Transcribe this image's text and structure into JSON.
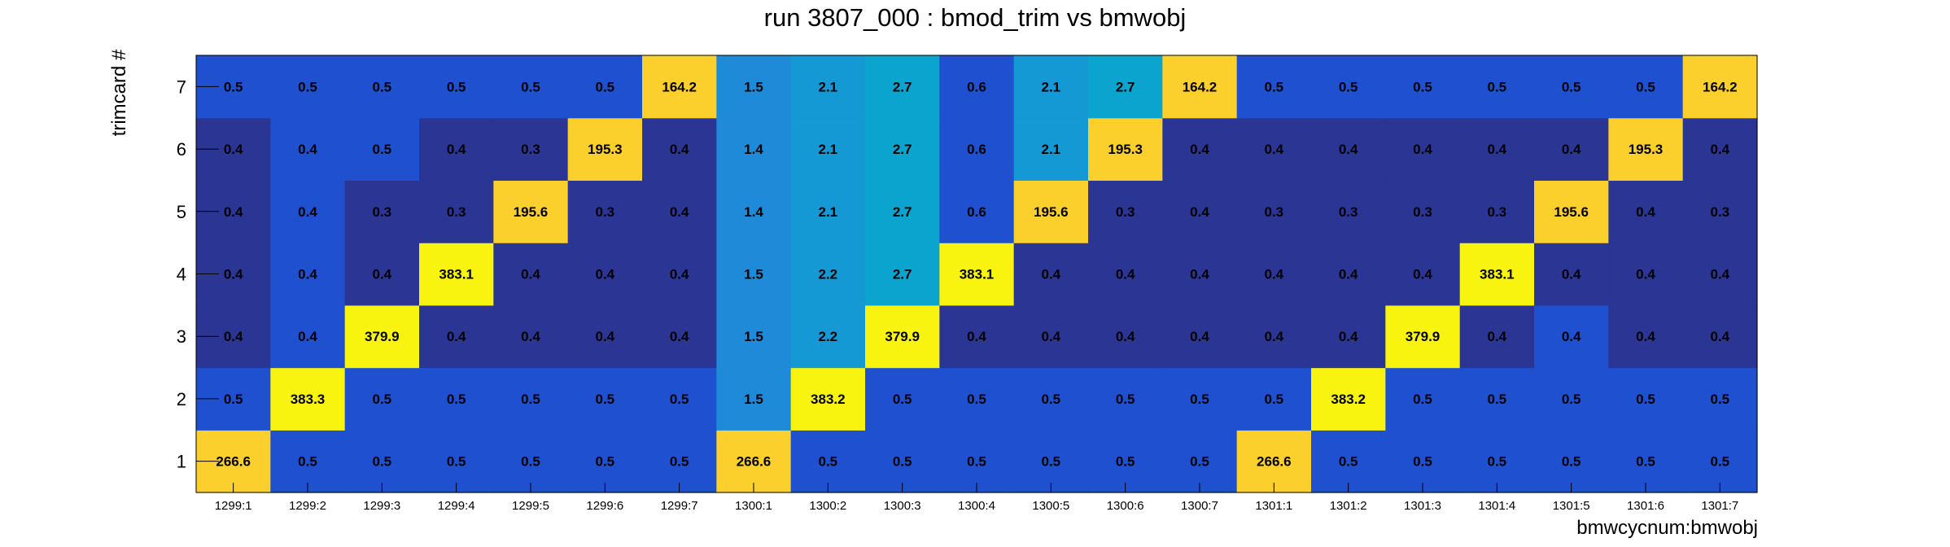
{
  "chart_data": {
    "type": "heatmap",
    "title": "run 3807_000 : bmod_trim vs bmwobj",
    "xlabel": "bmwcycnum:bmwobj",
    "ylabel": "trimcard #",
    "x_categories": [
      "1299:1",
      "1299:2",
      "1299:3",
      "1299:4",
      "1299:5",
      "1299:6",
      "1299:7",
      "1300:1",
      "1300:2",
      "1300:3",
      "1300:4",
      "1300:5",
      "1300:6",
      "1300:7",
      "1301:1",
      "1301:2",
      "1301:3",
      "1301:4",
      "1301:5",
      "1301:6",
      "1301:7"
    ],
    "y_categories": [
      "1",
      "2",
      "3",
      "4",
      "5",
      "6",
      "7"
    ],
    "values": [
      [
        "266.6",
        "0.5",
        "0.5",
        "0.5",
        "0.5",
        "0.5",
        "0.5",
        "266.6",
        "0.5",
        "0.5",
        "0.5",
        "0.5",
        "0.5",
        "0.5",
        "266.6",
        "0.5",
        "0.5",
        "0.5",
        "0.5",
        "0.5",
        "0.5"
      ],
      [
        "0.5",
        "383.3",
        "0.5",
        "0.5",
        "0.5",
        "0.5",
        "0.5",
        "1.5",
        "383.2",
        "0.5",
        "0.5",
        "0.5",
        "0.5",
        "0.5",
        "0.5",
        "383.2",
        "0.5",
        "0.5",
        "0.5",
        "0.5",
        "0.5"
      ],
      [
        "0.4",
        "0.4",
        "379.9",
        "0.4",
        "0.4",
        "0.4",
        "0.4",
        "1.5",
        "2.2",
        "379.9",
        "0.4",
        "0.4",
        "0.4",
        "0.4",
        "0.4",
        "0.4",
        "379.9",
        "0.4",
        "0.4",
        "0.4",
        "0.4"
      ],
      [
        "0.4",
        "0.4",
        "0.4",
        "383.1",
        "0.4",
        "0.4",
        "0.4",
        "1.5",
        "2.2",
        "2.7",
        "383.1",
        "0.4",
        "0.4",
        "0.4",
        "0.4",
        "0.4",
        "0.4",
        "383.1",
        "0.4",
        "0.4",
        "0.4"
      ],
      [
        "0.4",
        "0.4",
        "0.3",
        "0.3",
        "195.6",
        "0.3",
        "0.4",
        "1.4",
        "2.1",
        "2.7",
        "0.6",
        "195.6",
        "0.3",
        "0.4",
        "0.3",
        "0.3",
        "0.3",
        "0.3",
        "195.6",
        "0.4",
        "0.3"
      ],
      [
        "0.4",
        "0.4",
        "0.5",
        "0.4",
        "0.3",
        "195.3",
        "0.4",
        "1.4",
        "2.1",
        "2.7",
        "0.6",
        "2.1",
        "195.3",
        "0.4",
        "0.4",
        "0.4",
        "0.4",
        "0.4",
        "0.4",
        "195.3",
        "0.4"
      ],
      [
        "0.5",
        "0.5",
        "0.5",
        "0.5",
        "0.5",
        "0.5",
        "164.2",
        "1.5",
        "2.1",
        "2.7",
        "0.6",
        "2.1",
        "2.7",
        "164.2",
        "0.5",
        "0.5",
        "0.5",
        "0.5",
        "0.5",
        "0.5",
        "164.2"
      ]
    ],
    "palette": {
      "low": "#2b3594",
      "mid_low": "#1e50cf",
      "blue": "#1f8ad8",
      "light_blue": "#1499d5",
      "cyan": "#0ba4cf",
      "orange": "#fbcf2c",
      "yellow": "#f8f40f"
    },
    "grid": false,
    "legend": "none"
  }
}
